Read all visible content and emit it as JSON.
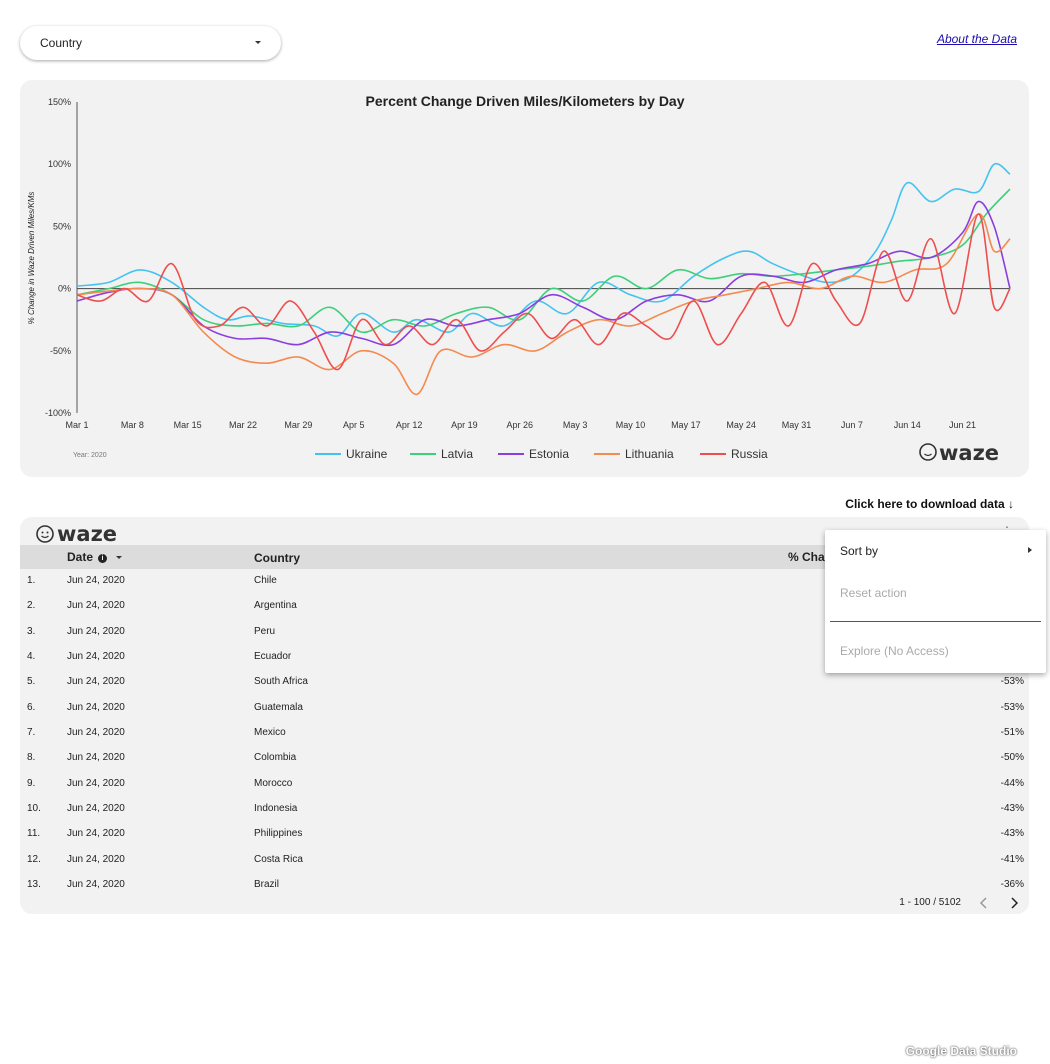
{
  "filter": {
    "label": "Country"
  },
  "about_link": "About the Data",
  "download_link": "Click here to download data ↓",
  "chart_data": {
    "type": "line",
    "title": "Percent Change Driven Miles/Kilometers by Day",
    "ylabel": "% Change in Waze Driven Miles/KMs",
    "xlabel": "",
    "footnote": "Year: 2020",
    "brand": "waze",
    "ylim": [
      -100,
      150
    ],
    "yticks": [
      "150%",
      "100%",
      "50%",
      "0%",
      "-50%",
      "-100%"
    ],
    "xticks": [
      "Mar 1",
      "Mar 8",
      "Mar 15",
      "Mar 22",
      "Mar 29",
      "Apr 5",
      "Apr 12",
      "Apr 19",
      "Apr 26",
      "May 3",
      "May 10",
      "May 17",
      "May 24",
      "May 31",
      "Jun 7",
      "Jun 14",
      "Jun 21"
    ],
    "legend_position": "bottom",
    "series": [
      {
        "name": "Ukraine",
        "color": "#44c3f0",
        "days": [
          0,
          4,
          8,
          12,
          16,
          19,
          22,
          26,
          30,
          33,
          36,
          40,
          43,
          47,
          50,
          54,
          58,
          62,
          66,
          70,
          74,
          78,
          82,
          85,
          88,
          92,
          95,
          98,
          101,
          103,
          105,
          108,
          111,
          114,
          116,
          118
        ],
        "values": [
          2,
          5,
          15,
          5,
          -15,
          -25,
          -22,
          -28,
          -30,
          -38,
          -20,
          -35,
          -25,
          -35,
          -20,
          -30,
          -10,
          -20,
          5,
          -5,
          -10,
          10,
          25,
          30,
          20,
          10,
          5,
          10,
          30,
          55,
          85,
          70,
          80,
          78,
          100,
          92
        ]
      },
      {
        "name": "Latvia",
        "color": "#3ecf7a",
        "days": [
          0,
          4,
          8,
          12,
          16,
          20,
          24,
          28,
          32,
          36,
          40,
          44,
          48,
          52,
          56,
          60,
          64,
          68,
          72,
          76,
          80,
          84,
          88,
          92,
          96,
          100,
          104,
          108,
          112,
          115,
          118
        ],
        "values": [
          -5,
          0,
          5,
          -5,
          -25,
          -30,
          -28,
          -30,
          -15,
          -35,
          -25,
          -30,
          -20,
          -15,
          -25,
          0,
          -10,
          10,
          0,
          15,
          8,
          12,
          10,
          12,
          15,
          18,
          22,
          25,
          35,
          60,
          80
        ]
      },
      {
        "name": "Estonia",
        "color": "#8b3ee0",
        "days": [
          0,
          4,
          8,
          12,
          16,
          20,
          24,
          28,
          32,
          36,
          40,
          44,
          48,
          52,
          56,
          60,
          64,
          68,
          72,
          76,
          80,
          84,
          88,
          92,
          96,
          100,
          104,
          108,
          112,
          114,
          116,
          118
        ],
        "values": [
          -10,
          -3,
          0,
          -5,
          -30,
          -40,
          -40,
          -45,
          -35,
          -40,
          -45,
          -25,
          -30,
          -25,
          -20,
          -5,
          -15,
          -25,
          -10,
          -5,
          -10,
          10,
          10,
          5,
          15,
          20,
          30,
          25,
          45,
          70,
          50,
          0
        ]
      },
      {
        "name": "Lithuania",
        "color": "#f48a4f",
        "days": [
          0,
          4,
          8,
          12,
          16,
          20,
          24,
          28,
          32,
          36,
          40,
          43,
          46,
          50,
          54,
          58,
          62,
          66,
          70,
          74,
          78,
          82,
          86,
          90,
          94,
          98,
          102,
          106,
          110,
          114,
          116,
          118
        ],
        "values": [
          -5,
          -2,
          0,
          -5,
          -35,
          -55,
          -60,
          -55,
          -65,
          -50,
          -60,
          -85,
          -50,
          -55,
          -45,
          -50,
          -35,
          -25,
          -30,
          -20,
          -10,
          -5,
          0,
          5,
          0,
          10,
          5,
          15,
          20,
          60,
          30,
          40
        ]
      },
      {
        "name": "Russia",
        "color": "#ee4e4e",
        "days": [
          0,
          3,
          6,
          9,
          12,
          15,
          18,
          21,
          24,
          27,
          30,
          33,
          36,
          39,
          42,
          45,
          48,
          51,
          54,
          57,
          60,
          63,
          66,
          69,
          72,
          75,
          78,
          81,
          84,
          87,
          90,
          93,
          96,
          99,
          102,
          105,
          108,
          111,
          114,
          116,
          118
        ],
        "values": [
          -5,
          -10,
          0,
          -10,
          20,
          -25,
          -30,
          -15,
          -30,
          -10,
          -35,
          -65,
          -25,
          -45,
          -30,
          -45,
          -25,
          -50,
          -35,
          -20,
          -40,
          -25,
          -45,
          -20,
          -30,
          -40,
          -10,
          -45,
          -20,
          5,
          -30,
          20,
          -10,
          -28,
          30,
          -10,
          40,
          -20,
          60,
          -15,
          0
        ]
      }
    ]
  },
  "table": {
    "headers": {
      "date": "Date",
      "country": "Country",
      "pct": "% Change"
    },
    "rows": [
      {
        "num": "1.",
        "date": "Jun 24, 2020",
        "country": "Chile",
        "pct": ""
      },
      {
        "num": "2.",
        "date": "Jun 24, 2020",
        "country": "Argentina",
        "pct": ""
      },
      {
        "num": "3.",
        "date": "Jun 24, 2020",
        "country": "Peru",
        "pct": ""
      },
      {
        "num": "4.",
        "date": "Jun 24, 2020",
        "country": "Ecuador",
        "pct": ""
      },
      {
        "num": "5.",
        "date": "Jun 24, 2020",
        "country": "South Africa",
        "pct": "-53%"
      },
      {
        "num": "6.",
        "date": "Jun 24, 2020",
        "country": "Guatemala",
        "pct": "-53%"
      },
      {
        "num": "7.",
        "date": "Jun 24, 2020",
        "country": "Mexico",
        "pct": "-51%"
      },
      {
        "num": "8.",
        "date": "Jun 24, 2020",
        "country": "Colombia",
        "pct": "-50%"
      },
      {
        "num": "9.",
        "date": "Jun 24, 2020",
        "country": "Morocco",
        "pct": "-44%"
      },
      {
        "num": "10.",
        "date": "Jun 24, 2020",
        "country": "Indonesia",
        "pct": "-43%"
      },
      {
        "num": "11.",
        "date": "Jun 24, 2020",
        "country": "Philippines",
        "pct": "-43%"
      },
      {
        "num": "12.",
        "date": "Jun 24, 2020",
        "country": "Costa Rica",
        "pct": "-41%"
      },
      {
        "num": "13.",
        "date": "Jun 24, 2020",
        "country": "Brazil",
        "pct": "-36%"
      }
    ],
    "pager": "1 - 100 / 5102"
  },
  "context_menu": {
    "sort_by": "Sort by",
    "reset_action": "Reset action",
    "explore": "Explore (No Access)"
  },
  "footer_brand": "Google Data Studio"
}
